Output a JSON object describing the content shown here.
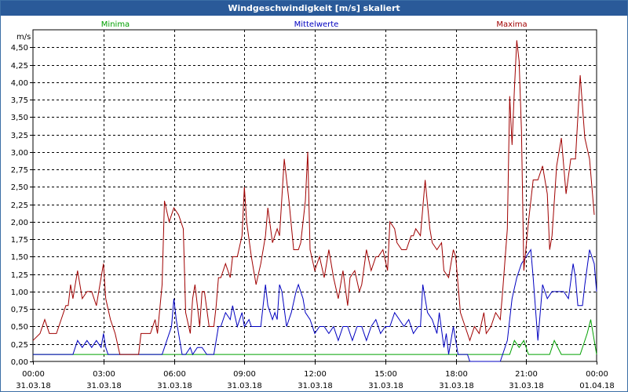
{
  "window": {
    "title": "Windgeschwindigkeit [m/s] skaliert"
  },
  "colors": {
    "titlebar": "#2a5a99",
    "min": "#00a000",
    "mean": "#0000c0",
    "max": "#a00000",
    "grid": "#000000"
  },
  "chart_data": {
    "type": "line",
    "title": "Windgeschwindigkeit [m/s] skaliert",
    "ylabel": "m/s",
    "xlabel": "",
    "ylim": [
      0,
      4.75
    ],
    "x_range_hours": [
      0,
      24
    ],
    "y_ticks": [
      "0,00",
      "0,25",
      "0,50",
      "0,75",
      "1,00",
      "1,25",
      "1,50",
      "1,75",
      "2,00",
      "2,25",
      "2,50",
      "2,75",
      "3,00",
      "3,25",
      "3,50",
      "3,75",
      "4,00",
      "4,25",
      "4,50"
    ],
    "x_ticks": [
      {
        "time": "00:00",
        "date": "31.03.18"
      },
      {
        "time": "03:00",
        "date": "31.03.18"
      },
      {
        "time": "06:00",
        "date": "31.03.18"
      },
      {
        "time": "09:00",
        "date": "31.03.18"
      },
      {
        "time": "12:00",
        "date": "31.03.18"
      },
      {
        "time": "15:00",
        "date": "31.03.18"
      },
      {
        "time": "18:00",
        "date": "31.03.18"
      },
      {
        "time": "21:00",
        "date": "31.03.18"
      },
      {
        "time": "00:00",
        "date": "01.04.18"
      }
    ],
    "grid": true,
    "legend_placement": "top",
    "series": [
      {
        "name": "Minima",
        "color": "#00a000",
        "points": [
          [
            0,
            0.1
          ],
          [
            19.9,
            0.1
          ],
          [
            20.3,
            0.1
          ],
          [
            20.5,
            0.3
          ],
          [
            20.7,
            0.2
          ],
          [
            20.9,
            0.3
          ],
          [
            21.1,
            0.1
          ],
          [
            22,
            0.1
          ],
          [
            22.2,
            0.3
          ],
          [
            22.5,
            0.1
          ],
          [
            23.3,
            0.1
          ],
          [
            23.6,
            0.4
          ],
          [
            23.75,
            0.6
          ],
          [
            23.9,
            0.3
          ],
          [
            24,
            0.1
          ]
        ]
      },
      {
        "name": "Mittelwerte",
        "color": "#0000c0",
        "points": [
          [
            0,
            0.1
          ],
          [
            1.7,
            0.1
          ],
          [
            1.9,
            0.3
          ],
          [
            2.1,
            0.2
          ],
          [
            2.3,
            0.3
          ],
          [
            2.5,
            0.2
          ],
          [
            2.7,
            0.3
          ],
          [
            2.9,
            0.2
          ],
          [
            3.0,
            0.4
          ],
          [
            3.1,
            0.2
          ],
          [
            3.2,
            0.1
          ],
          [
            5.5,
            0.1
          ],
          [
            5.7,
            0.3
          ],
          [
            5.9,
            0.5
          ],
          [
            6.0,
            0.9
          ],
          [
            6.1,
            0.6
          ],
          [
            6.2,
            0.4
          ],
          [
            6.35,
            0.1
          ],
          [
            6.5,
            0.1
          ],
          [
            6.7,
            0.2
          ],
          [
            6.8,
            0.1
          ],
          [
            7.0,
            0.2
          ],
          [
            7.2,
            0.2
          ],
          [
            7.4,
            0.1
          ],
          [
            7.7,
            0.1
          ],
          [
            7.9,
            0.5
          ],
          [
            8.0,
            0.5
          ],
          [
            8.2,
            0.7
          ],
          [
            8.4,
            0.6
          ],
          [
            8.5,
            0.8
          ],
          [
            8.7,
            0.5
          ],
          [
            8.9,
            0.7
          ],
          [
            9.0,
            0.5
          ],
          [
            9.2,
            0.6
          ],
          [
            9.3,
            0.5
          ],
          [
            9.5,
            0.5
          ],
          [
            9.7,
            0.5
          ],
          [
            9.9,
            1.1
          ],
          [
            10.0,
            0.8
          ],
          [
            10.2,
            0.6
          ],
          [
            10.3,
            0.7
          ],
          [
            10.4,
            0.6
          ],
          [
            10.5,
            1.1
          ],
          [
            10.6,
            1.0
          ],
          [
            10.8,
            0.5
          ],
          [
            11.0,
            0.7
          ],
          [
            11.2,
            1.0
          ],
          [
            11.3,
            1.1
          ],
          [
            11.5,
            0.9
          ],
          [
            11.6,
            0.7
          ],
          [
            11.8,
            0.6
          ],
          [
            12.0,
            0.4
          ],
          [
            12.2,
            0.5
          ],
          [
            12.4,
            0.5
          ],
          [
            12.6,
            0.4
          ],
          [
            12.8,
            0.5
          ],
          [
            13.0,
            0.3
          ],
          [
            13.2,
            0.5
          ],
          [
            13.4,
            0.5
          ],
          [
            13.6,
            0.3
          ],
          [
            13.8,
            0.5
          ],
          [
            14.0,
            0.5
          ],
          [
            14.2,
            0.3
          ],
          [
            14.4,
            0.5
          ],
          [
            14.6,
            0.6
          ],
          [
            14.8,
            0.4
          ],
          [
            15.0,
            0.5
          ],
          [
            15.2,
            0.5
          ],
          [
            15.4,
            0.7
          ],
          [
            15.6,
            0.6
          ],
          [
            15.8,
            0.5
          ],
          [
            16.0,
            0.6
          ],
          [
            16.2,
            0.4
          ],
          [
            16.4,
            0.5
          ],
          [
            16.5,
            0.5
          ],
          [
            16.6,
            1.1
          ],
          [
            16.8,
            0.7
          ],
          [
            17.0,
            0.6
          ],
          [
            17.2,
            0.4
          ],
          [
            17.3,
            0.7
          ],
          [
            17.5,
            0.2
          ],
          [
            17.6,
            0.4
          ],
          [
            17.7,
            0.1
          ],
          [
            17.9,
            0.5
          ],
          [
            18.1,
            0.1
          ],
          [
            18.3,
            0.1
          ],
          [
            18.5,
            0.1
          ],
          [
            18.6,
            0.0
          ],
          [
            19.9,
            0.0
          ],
          [
            20.0,
            0.1
          ],
          [
            20.2,
            0.3
          ],
          [
            20.4,
            0.9
          ],
          [
            20.6,
            1.2
          ],
          [
            20.8,
            1.4
          ],
          [
            21.0,
            1.5
          ],
          [
            21.2,
            1.6
          ],
          [
            21.3,
            1.2
          ],
          [
            21.5,
            0.3
          ],
          [
            21.7,
            1.1
          ],
          [
            21.9,
            0.9
          ],
          [
            22.1,
            1.0
          ],
          [
            22.3,
            1.0
          ],
          [
            22.5,
            1.0
          ],
          [
            22.6,
            1.0
          ],
          [
            22.8,
            0.9
          ],
          [
            23.0,
            1.4
          ],
          [
            23.1,
            1.2
          ],
          [
            23.2,
            0.8
          ],
          [
            23.4,
            0.8
          ],
          [
            23.5,
            1.1
          ],
          [
            23.7,
            1.6
          ],
          [
            23.9,
            1.4
          ],
          [
            24.0,
            1.0
          ]
        ]
      },
      {
        "name": "Maxima",
        "color": "#a00000",
        "points": [
          [
            0,
            0.3
          ],
          [
            0.3,
            0.4
          ],
          [
            0.5,
            0.6
          ],
          [
            0.7,
            0.4
          ],
          [
            1.0,
            0.4
          ],
          [
            1.2,
            0.6
          ],
          [
            1.4,
            0.8
          ],
          [
            1.5,
            0.8
          ],
          [
            1.6,
            1.1
          ],
          [
            1.7,
            0.9
          ],
          [
            1.9,
            1.3
          ],
          [
            2.1,
            0.9
          ],
          [
            2.3,
            1.0
          ],
          [
            2.5,
            1.0
          ],
          [
            2.7,
            0.8
          ],
          [
            2.8,
            1.0
          ],
          [
            3.0,
            1.4
          ],
          [
            3.1,
            0.9
          ],
          [
            3.3,
            0.6
          ],
          [
            3.5,
            0.4
          ],
          [
            3.7,
            0.1
          ],
          [
            4.5,
            0.1
          ],
          [
            4.6,
            0.4
          ],
          [
            5.0,
            0.4
          ],
          [
            5.2,
            0.6
          ],
          [
            5.3,
            0.4
          ],
          [
            5.5,
            1.1
          ],
          [
            5.6,
            2.3
          ],
          [
            5.8,
            2.0
          ],
          [
            6.0,
            2.2
          ],
          [
            6.2,
            2.1
          ],
          [
            6.4,
            1.9
          ],
          [
            6.5,
            0.7
          ],
          [
            6.7,
            0.4
          ],
          [
            6.8,
            0.9
          ],
          [
            6.9,
            1.1
          ],
          [
            7.1,
            0.5
          ],
          [
            7.2,
            1.0
          ],
          [
            7.3,
            1.0
          ],
          [
            7.5,
            0.5
          ],
          [
            7.7,
            0.5
          ],
          [
            7.8,
            0.8
          ],
          [
            7.9,
            1.2
          ],
          [
            8.0,
            1.2
          ],
          [
            8.2,
            1.4
          ],
          [
            8.4,
            1.2
          ],
          [
            8.5,
            1.5
          ],
          [
            8.7,
            1.5
          ],
          [
            8.9,
            1.8
          ],
          [
            9.0,
            2.5
          ],
          [
            9.1,
            2.0
          ],
          [
            9.3,
            1.5
          ],
          [
            9.5,
            1.1
          ],
          [
            9.7,
            1.4
          ],
          [
            9.9,
            1.8
          ],
          [
            10.0,
            2.2
          ],
          [
            10.2,
            1.7
          ],
          [
            10.4,
            1.9
          ],
          [
            10.5,
            1.8
          ],
          [
            10.7,
            2.9
          ],
          [
            10.9,
            2.3
          ],
          [
            11.1,
            1.6
          ],
          [
            11.3,
            1.6
          ],
          [
            11.4,
            1.7
          ],
          [
            11.6,
            2.3
          ],
          [
            11.7,
            3.0
          ],
          [
            11.8,
            1.6
          ],
          [
            12.0,
            1.3
          ],
          [
            12.2,
            1.5
          ],
          [
            12.4,
            1.2
          ],
          [
            12.6,
            1.6
          ],
          [
            12.8,
            1.2
          ],
          [
            13.0,
            0.9
          ],
          [
            13.2,
            1.3
          ],
          [
            13.4,
            0.8
          ],
          [
            13.5,
            1.2
          ],
          [
            13.7,
            1.3
          ],
          [
            13.9,
            1.0
          ],
          [
            14.0,
            1.1
          ],
          [
            14.2,
            1.6
          ],
          [
            14.4,
            1.3
          ],
          [
            14.6,
            1.5
          ],
          [
            14.7,
            1.5
          ],
          [
            14.9,
            1.6
          ],
          [
            15.1,
            1.3
          ],
          [
            15.2,
            2.0
          ],
          [
            15.4,
            1.9
          ],
          [
            15.5,
            1.7
          ],
          [
            15.7,
            1.6
          ],
          [
            15.9,
            1.6
          ],
          [
            16.1,
            1.8
          ],
          [
            16.2,
            1.8
          ],
          [
            16.3,
            1.9
          ],
          [
            16.5,
            1.8
          ],
          [
            16.7,
            2.6
          ],
          [
            16.9,
            1.9
          ],
          [
            17.0,
            1.7
          ],
          [
            17.2,
            1.6
          ],
          [
            17.4,
            1.7
          ],
          [
            17.5,
            1.3
          ],
          [
            17.7,
            1.2
          ],
          [
            17.9,
            1.6
          ],
          [
            18.0,
            1.5
          ],
          [
            18.2,
            0.7
          ],
          [
            18.4,
            0.5
          ],
          [
            18.6,
            0.3
          ],
          [
            18.8,
            0.5
          ],
          [
            19.0,
            0.4
          ],
          [
            19.2,
            0.7
          ],
          [
            19.3,
            0.4
          ],
          [
            19.5,
            0.5
          ],
          [
            19.7,
            0.7
          ],
          [
            19.9,
            0.6
          ],
          [
            20.0,
            1.0
          ],
          [
            20.2,
            1.9
          ],
          [
            20.3,
            3.8
          ],
          [
            20.4,
            3.1
          ],
          [
            20.5,
            3.9
          ],
          [
            20.6,
            4.6
          ],
          [
            20.7,
            4.3
          ],
          [
            20.8,
            3.3
          ],
          [
            20.9,
            1.3
          ],
          [
            21.1,
            2.0
          ],
          [
            21.3,
            2.6
          ],
          [
            21.5,
            2.6
          ],
          [
            21.7,
            2.8
          ],
          [
            21.9,
            2.4
          ],
          [
            22.0,
            1.6
          ],
          [
            22.1,
            1.8
          ],
          [
            22.3,
            2.8
          ],
          [
            22.5,
            3.2
          ],
          [
            22.7,
            2.4
          ],
          [
            22.9,
            2.9
          ],
          [
            23.1,
            2.9
          ],
          [
            23.3,
            4.1
          ],
          [
            23.5,
            3.2
          ],
          [
            23.7,
            2.9
          ],
          [
            23.9,
            2.1
          ]
        ]
      }
    ]
  }
}
